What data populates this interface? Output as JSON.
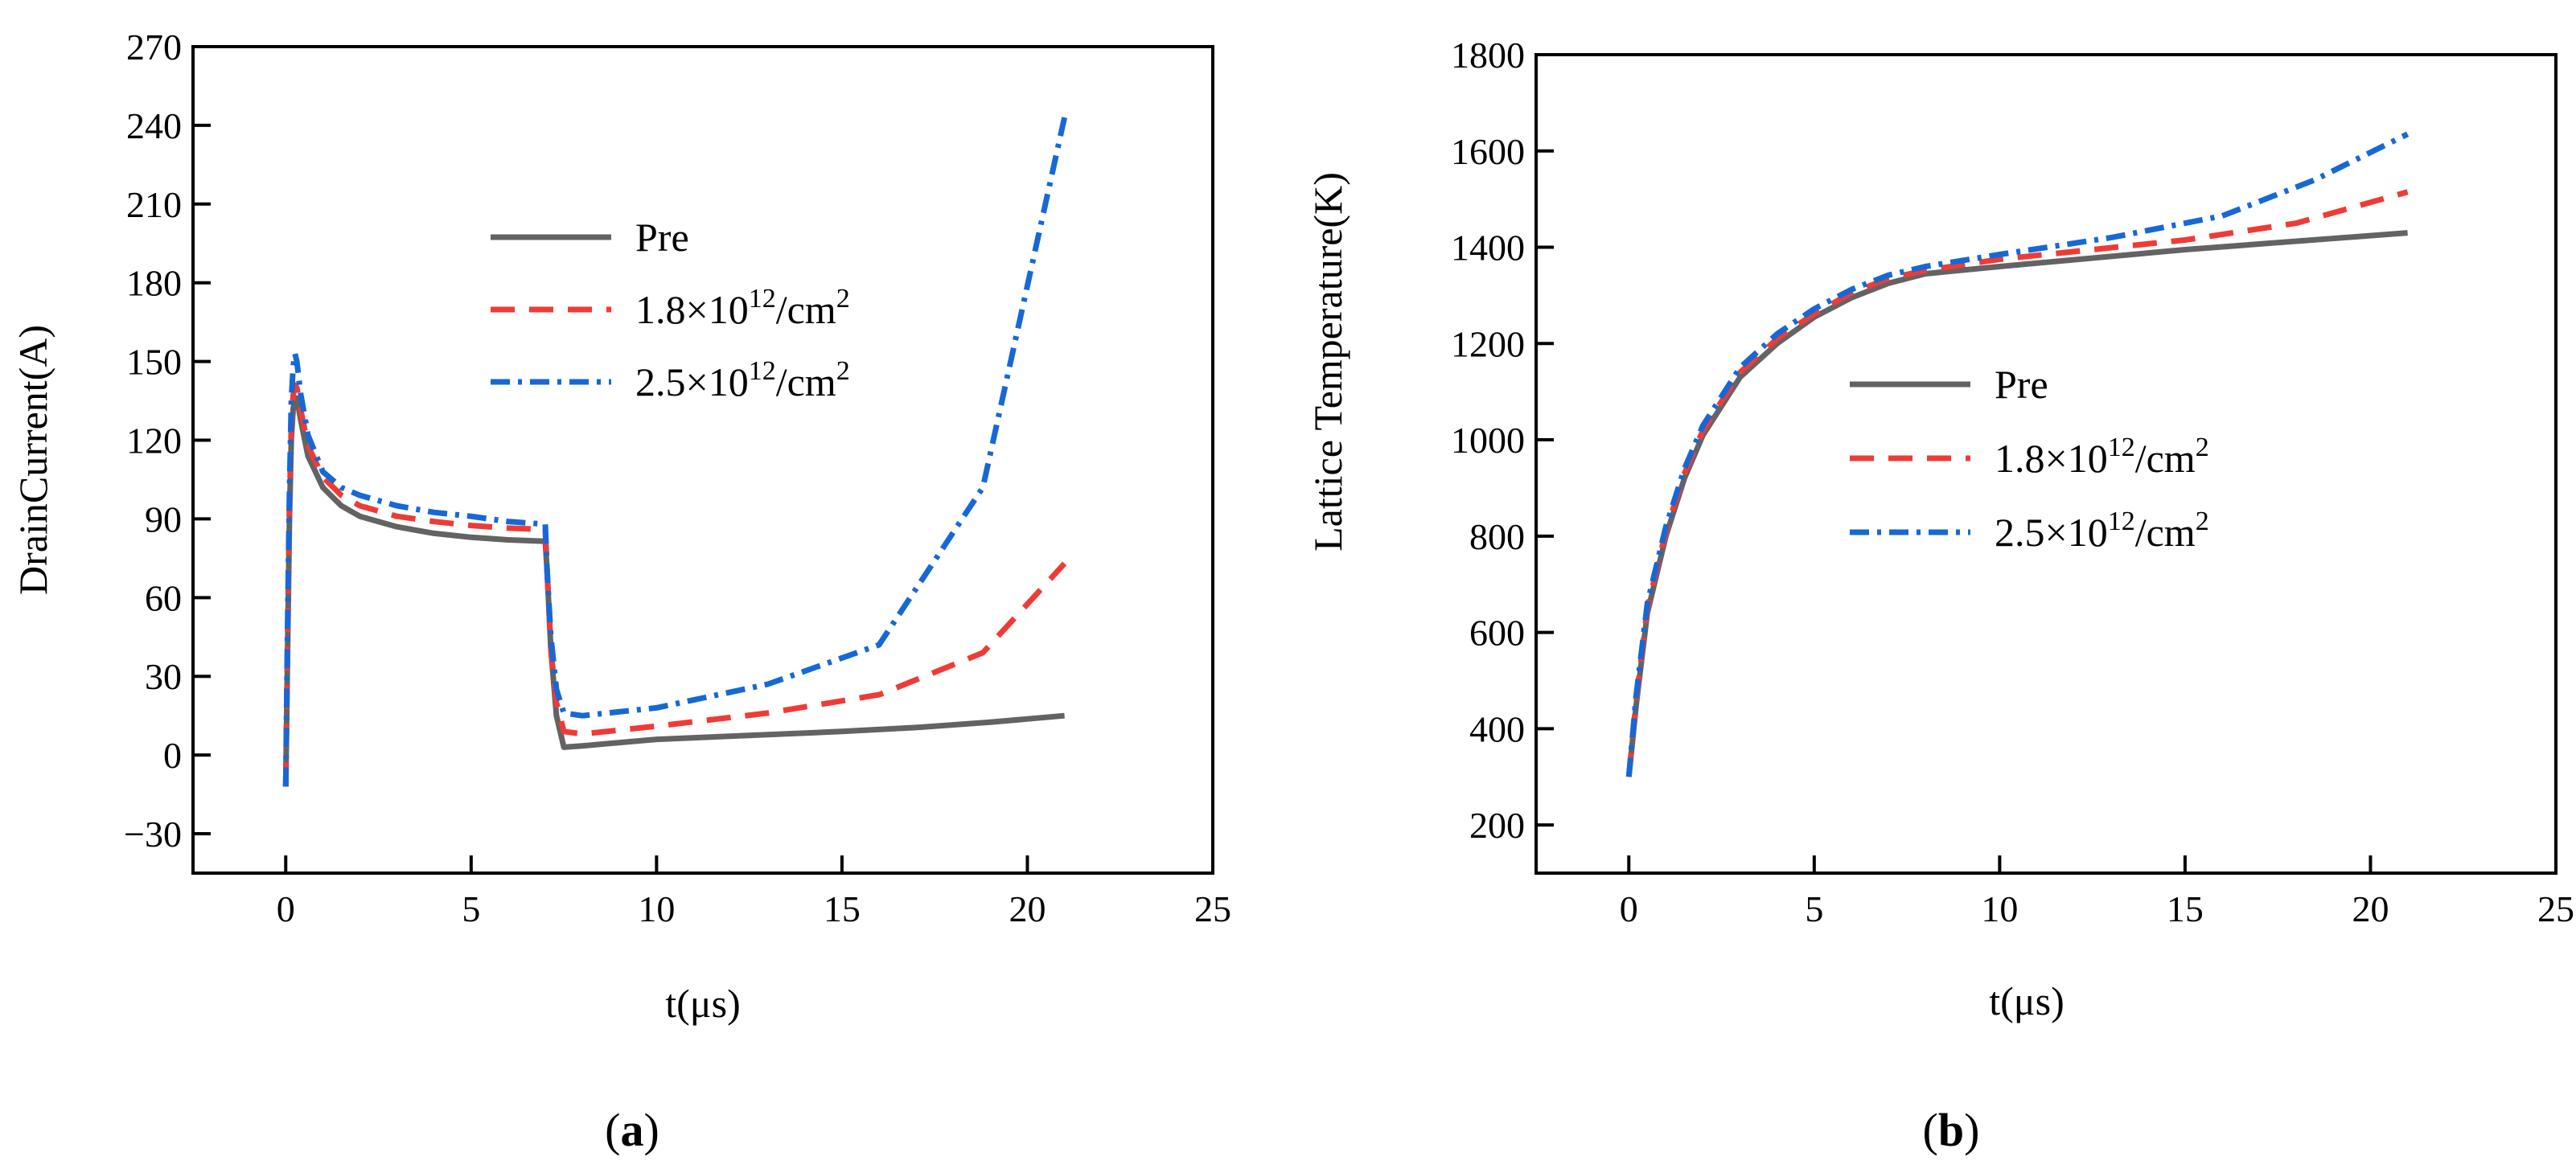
{
  "chart_data": [
    {
      "id": "a",
      "type": "line",
      "panel_label": "a",
      "xlabel": "t(μs)",
      "ylabel": "DrainCurrent(A)",
      "xlim": [
        -2.5,
        25
      ],
      "ylim": [
        -45,
        270
      ],
      "xticks": [
        0,
        5,
        10,
        15,
        20,
        25
      ],
      "yticks": [
        -30,
        0,
        30,
        60,
        90,
        120,
        150,
        180,
        210,
        240,
        270
      ],
      "legend_position": "upper-center",
      "series": [
        {
          "name": "Pre",
          "legend_label": "Pre",
          "color": "#636363",
          "dash": "solid",
          "points": [
            [
              0,
              -12
            ],
            [
              0.05,
              40
            ],
            [
              0.1,
              90
            ],
            [
              0.15,
              120
            ],
            [
              0.2,
              132
            ],
            [
              0.25,
              136
            ],
            [
              0.3,
              136
            ],
            [
              0.4,
              128
            ],
            [
              0.6,
              114
            ],
            [
              1.0,
              102
            ],
            [
              1.5,
              95
            ],
            [
              2,
              91
            ],
            [
              3,
              87
            ],
            [
              4,
              84.5
            ],
            [
              5,
              83
            ],
            [
              6,
              82
            ],
            [
              7,
              81.5
            ],
            [
              7.05,
              70
            ],
            [
              7.15,
              40
            ],
            [
              7.3,
              15
            ],
            [
              7.5,
              3
            ],
            [
              8,
              3.5
            ],
            [
              10,
              6
            ],
            [
              15,
              9
            ],
            [
              17,
              10.5
            ],
            [
              19,
              12.5
            ],
            [
              21,
              15
            ]
          ]
        },
        {
          "name": "1.8x10^12/cm^2",
          "legend_label": "1.8×10",
          "legend_sup": "12",
          "legend_unit": "/cm",
          "legend_sup2": "2",
          "color": "#ef3b36",
          "dash": "long-dash",
          "points": [
            [
              0,
              -12
            ],
            [
              0.05,
              45
            ],
            [
              0.1,
              95
            ],
            [
              0.15,
              125
            ],
            [
              0.2,
              137
            ],
            [
              0.25,
              141
            ],
            [
              0.3,
              140
            ],
            [
              0.4,
              132
            ],
            [
              0.6,
              118
            ],
            [
              1.0,
              106
            ],
            [
              1.5,
              99
            ],
            [
              2,
              95
            ],
            [
              3,
              91
            ],
            [
              4,
              89
            ],
            [
              5,
              87.5
            ],
            [
              6,
              86.5
            ],
            [
              7,
              86
            ],
            [
              7.05,
              70
            ],
            [
              7.15,
              40
            ],
            [
              7.3,
              20
            ],
            [
              7.5,
              9
            ],
            [
              8,
              8
            ],
            [
              10,
              11
            ],
            [
              13,
              16
            ],
            [
              16,
              23
            ],
            [
              18.8,
              39
            ],
            [
              21,
              73
            ]
          ]
        },
        {
          "name": "2.5x10^12/cm^2",
          "legend_label": "2.5×10",
          "legend_sup": "12",
          "legend_unit": "/cm",
          "legend_sup2": "2",
          "color": "#1668d6",
          "dash": "dash-dot",
          "points": [
            [
              0,
              -12
            ],
            [
              0.05,
              50
            ],
            [
              0.1,
              100
            ],
            [
              0.15,
              135
            ],
            [
              0.2,
              148
            ],
            [
              0.25,
              153
            ],
            [
              0.3,
              150
            ],
            [
              0.4,
              138
            ],
            [
              0.6,
              122
            ],
            [
              1.0,
              108
            ],
            [
              1.5,
              102
            ],
            [
              2,
              99
            ],
            [
              3,
              95
            ],
            [
              4,
              92.5
            ],
            [
              5,
              91
            ],
            [
              6,
              89
            ],
            [
              7,
              88
            ],
            [
              7.05,
              70
            ],
            [
              7.15,
              45
            ],
            [
              7.3,
              25
            ],
            [
              7.5,
              16
            ],
            [
              8,
              15
            ],
            [
              10,
              18
            ],
            [
              13,
              27
            ],
            [
              16,
              42
            ],
            [
              18.8,
              102
            ],
            [
              21,
              243
            ]
          ]
        }
      ]
    },
    {
      "id": "b",
      "type": "line",
      "panel_label": "b",
      "xlabel": "t(μs)",
      "ylabel": "Lattice Temperature(K)",
      "xlim": [
        -2.5,
        25
      ],
      "ylim": [
        100,
        1800
      ],
      "xticks": [
        0,
        5,
        10,
        15,
        20,
        25
      ],
      "yticks": [
        200,
        400,
        600,
        800,
        1000,
        1200,
        1400,
        1600,
        1800
      ],
      "legend_position": "center",
      "series": [
        {
          "name": "Pre",
          "legend_label": "Pre",
          "color": "#636363",
          "dash": "solid",
          "points": [
            [
              0,
              300
            ],
            [
              0.2,
              450
            ],
            [
              0.5,
              640
            ],
            [
              1,
              800
            ],
            [
              1.5,
              920
            ],
            [
              2,
              1010
            ],
            [
              3,
              1130
            ],
            [
              4,
              1200
            ],
            [
              5,
              1255
            ],
            [
              6,
              1295
            ],
            [
              7,
              1325
            ],
            [
              8,
              1345
            ],
            [
              10,
              1360
            ],
            [
              15,
              1395
            ],
            [
              21,
              1430
            ]
          ]
        },
        {
          "name": "1.8x10^12/cm^2",
          "legend_label": "1.8×10",
          "legend_sup": "12",
          "legend_unit": "/cm",
          "legend_sup2": "2",
          "color": "#ef3b36",
          "dash": "long-dash",
          "points": [
            [
              0,
              300
            ],
            [
              0.2,
              460
            ],
            [
              0.5,
              650
            ],
            [
              1,
              810
            ],
            [
              1.5,
              930
            ],
            [
              2,
              1020
            ],
            [
              3,
              1140
            ],
            [
              4,
              1210
            ],
            [
              5,
              1262
            ],
            [
              6,
              1305
            ],
            [
              7,
              1335
            ],
            [
              8,
              1352
            ],
            [
              10,
              1375
            ],
            [
              15,
              1415
            ],
            [
              18,
              1450
            ],
            [
              21,
              1515
            ]
          ]
        },
        {
          "name": "2.5x10^12/cm^2",
          "legend_label": "2.5×10",
          "legend_sup": "12",
          "legend_unit": "/cm",
          "legend_sup2": "2",
          "color": "#1668d6",
          "dash": "dash-dot",
          "points": [
            [
              0,
              300
            ],
            [
              0.2,
              470
            ],
            [
              0.5,
              660
            ],
            [
              1,
              820
            ],
            [
              1.5,
              940
            ],
            [
              2,
              1030
            ],
            [
              3,
              1150
            ],
            [
              4,
              1220
            ],
            [
              5,
              1272
            ],
            [
              6,
              1312
            ],
            [
              7,
              1342
            ],
            [
              8,
              1360
            ],
            [
              10,
              1385
            ],
            [
              13,
              1420
            ],
            [
              16,
              1465
            ],
            [
              18.5,
              1540
            ],
            [
              21,
              1635
            ]
          ]
        }
      ]
    }
  ]
}
